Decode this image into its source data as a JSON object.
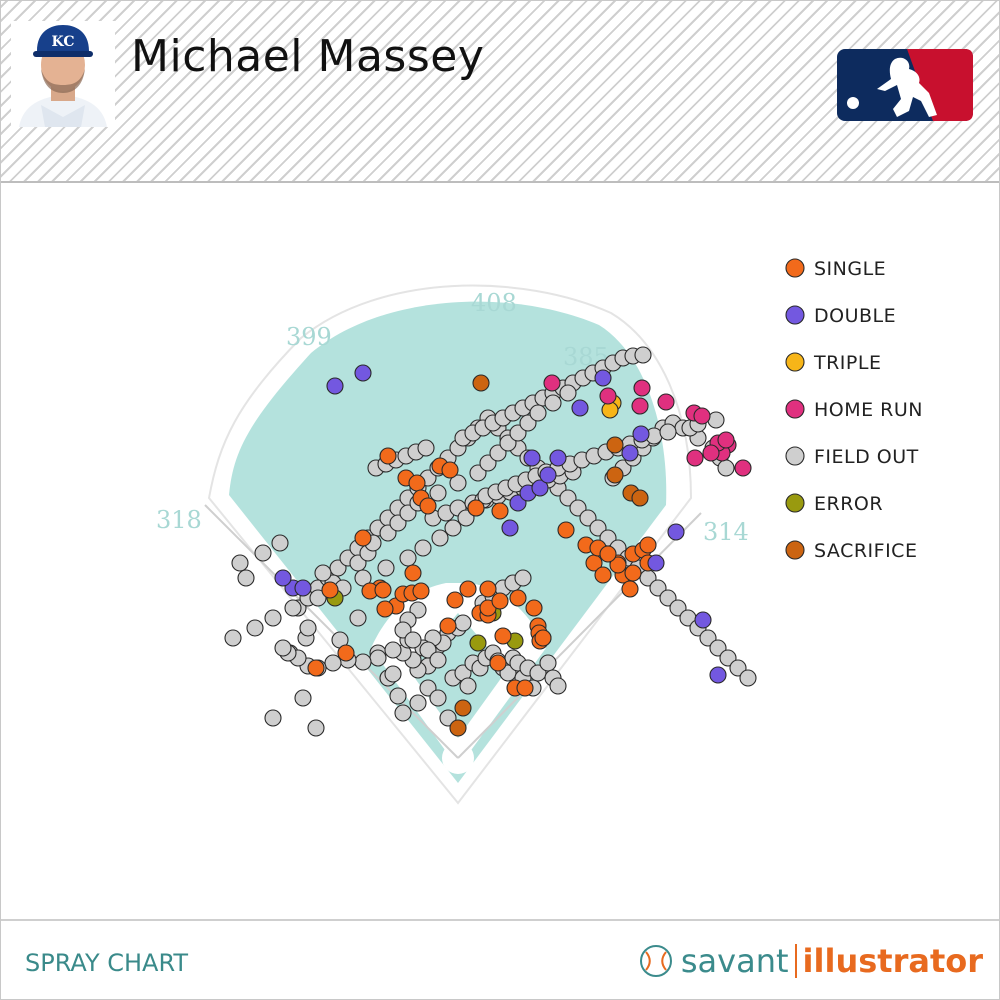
{
  "player": {
    "name": "Michael Massey"
  },
  "footer": {
    "label": "SPRAY CHART",
    "brand_savant": "savant",
    "brand_illustrator": "illustrator"
  },
  "colors": {
    "field": "#b4e2dd",
    "infield": "#ffffff",
    "accent": "#3b8b8c",
    "brand_orange": "#e86a1f"
  },
  "icons": {
    "mlb": "mlb-logo",
    "brand": "baseball-icon"
  },
  "chart_data": {
    "type": "scatter",
    "title": "",
    "distance_labels": [
      "318",
      "399",
      "408",
      "385",
      "314"
    ],
    "legend": [
      {
        "key": "single",
        "label": "SINGLE",
        "color": "#f26a1b"
      },
      {
        "key": "double",
        "label": "DOUBLE",
        "color": "#7358e0"
      },
      {
        "key": "triple",
        "label": "TRIPLE",
        "color": "#f7b518"
      },
      {
        "key": "home_run",
        "label": "HOME RUN",
        "color": "#e0307f"
      },
      {
        "key": "field_out",
        "label": "FIELD OUT",
        "color": "#cfcfcf"
      },
      {
        "key": "error",
        "label": "ERROR",
        "color": "#999a0f"
      },
      {
        "key": "sacrifice",
        "label": "SACRIFICE",
        "color": "#cc6411"
      }
    ],
    "series": [
      {
        "name": "SINGLE",
        "x": [
          -70,
          -52,
          -41,
          -18,
          -8,
          18,
          42,
          108,
          128,
          136,
          145,
          160,
          165,
          172,
          160,
          175,
          140,
          150,
          175,
          185,
          190,
          190,
          -37,
          -30,
          -95,
          -78,
          -45,
          -112,
          -142,
          -128,
          -88,
          -75,
          -62,
          -55,
          -46,
          -37,
          -3,
          -10,
          10,
          22,
          30,
          30,
          30,
          45,
          42,
          60,
          76,
          80,
          81,
          82,
          85,
          -73,
          40,
          57,
          67
        ],
        "y": [
          302,
          280,
          275,
          292,
          288,
          250,
          247,
          228,
          213,
          195,
          183,
          195,
          183,
          169,
          193,
          204,
          210,
          204,
          185,
          208,
          213,
          195,
          260,
          252,
          220,
          170,
          185,
          105,
          90,
          168,
          167,
          168,
          152,
          164,
          165,
          167,
          158,
          132,
          169,
          145,
          143,
          150,
          169,
          122,
          157,
          160,
          150,
          132,
          125,
          117,
          120,
          149,
          95,
          70,
          70
        ]
      },
      {
        "name": "DOUBLE",
        "x": [
          -123,
          -95,
          -165,
          -175,
          -155,
          52,
          60,
          70,
          74,
          82,
          90,
          100,
          122,
          145,
          172,
          183,
          198,
          218,
          245,
          260
        ],
        "y": [
          372,
          385,
          170,
          180,
          170,
          230,
          255,
          265,
          300,
          270,
          283,
          300,
          350,
          380,
          305,
          324,
          195,
          226,
          138,
          83
        ]
      },
      {
        "name": "TRIPLE",
        "x": [
          155,
          152
        ],
        "y": [
          355,
          348
        ]
      },
      {
        "name": "HOME RUN",
        "x": [
          94,
          150,
          184,
          182,
          208,
          236,
          244,
          270,
          264,
          260,
          268,
          285,
          237,
          253
        ],
        "y": [
          375,
          362,
          370,
          352,
          356,
          345,
          342,
          313,
          305,
          315,
          318,
          290,
          300,
          305
        ]
      },
      {
        "name": "FIELD OUT",
        "x": [
          -155,
          -185,
          -142,
          -168,
          -152,
          -150,
          -118,
          -100,
          -80,
          -70,
          -60,
          -55,
          -40,
          -30,
          -20,
          -10,
          -5,
          5,
          10,
          15,
          22,
          28,
          35,
          40,
          45,
          50,
          55,
          60,
          65,
          70,
          75,
          80,
          85,
          90,
          95,
          100,
          -30,
          -40,
          -65,
          -45,
          -55,
          -20,
          -10,
          0,
          5,
          -15,
          -25,
          -35,
          -50,
          -65,
          -80,
          -95,
          -110,
          -125,
          -140,
          -150,
          -160,
          -170,
          -175,
          -160,
          -150,
          -140,
          -130,
          -120,
          -110,
          -100,
          -90,
          -80,
          -70,
          -60,
          -50,
          -40,
          -30,
          -20,
          -10,
          0,
          10,
          20,
          30,
          40,
          50,
          60,
          70,
          80,
          90,
          100,
          110,
          120,
          130,
          140,
          150,
          160,
          170,
          180,
          190,
          200,
          210,
          220,
          230,
          240,
          250,
          260,
          270,
          280,
          290,
          -212,
          -218,
          -195,
          -178,
          -40,
          -50,
          -55,
          -45,
          -30,
          -20,
          25,
          35,
          45,
          55,
          65,
          -25,
          -12,
          0,
          15,
          28,
          40,
          52,
          65,
          78,
          90,
          102,
          115,
          -82,
          -72,
          -62,
          -52,
          -42,
          -32,
          5,
          15,
          25,
          35,
          45,
          55,
          65,
          75,
          85,
          95,
          105,
          115,
          125,
          135,
          145,
          155,
          165,
          175,
          185,
          -125,
          -135,
          -100,
          -90,
          -85,
          -70,
          -60,
          -50,
          -40,
          -20,
          0,
          20,
          30,
          40,
          50,
          60,
          70,
          80,
          95,
          110,
          155,
          165,
          175,
          185,
          195,
          205,
          215,
          225,
          240,
          255,
          262,
          268,
          -225,
          -203,
          -185,
          -165,
          -140,
          -115,
          -95,
          -72,
          -50,
          -35,
          -18,
          -5,
          8,
          18,
          25,
          28,
          38,
          48,
          58,
          68,
          78,
          88,
          100,
          112,
          124,
          136,
          148,
          160,
          172,
          184,
          196,
          210,
          232,
          240,
          258
        ],
        "y": [
          60,
          40,
          30,
          105,
          120,
          130,
          118,
          140,
          105,
          80,
          62,
          45,
          55,
          70,
          60,
          40,
          80,
          85,
          72,
          95,
          90,
          100,
          105,
          97,
          90,
          85,
          100,
          95,
          80,
          90,
          70,
          85,
          120,
          95,
          80,
          72,
          92,
          88,
          84,
          98,
          105,
          112,
          125,
          130,
          135,
          115,
          120,
          110,
          118,
          108,
          100,
          96,
          98,
          95,
          90,
          92,
          100,
          105,
          110,
          150,
          160,
          170,
          180,
          190,
          200,
          210,
          220,
          230,
          240,
          250,
          260,
          270,
          280,
          290,
          300,
          310,
          320,
          330,
          340,
          330,
          320,
          310,
          300,
          290,
          280,
          270,
          260,
          250,
          240,
          230,
          220,
          210,
          200,
          190,
          180,
          170,
          160,
          150,
          140,
          130,
          120,
          110,
          100,
          90,
          80,
          180,
          195,
          205,
          215,
          148,
          138,
          128,
          118,
          108,
          98,
          155,
          162,
          170,
          175,
          180,
          240,
          245,
          250,
          255,
          258,
          262,
          266,
          270,
          274,
          278,
          282,
          286,
          290,
          294,
          298,
          302,
          306,
          310,
          320,
          325,
          330,
          335,
          340,
          345,
          350,
          355,
          360,
          365,
          370,
          375,
          380,
          385,
          390,
          395,
          400,
          402,
          403,
          175,
          185,
          195,
          205,
          215,
          225,
          235,
          245,
          255,
          265,
          275,
          285,
          295,
          305,
          315,
          325,
          335,
          345,
          355,
          365,
          280,
          290,
          300,
          310,
          320,
          330,
          335,
          330,
          320,
          310,
          300,
          290,
          120,
          130,
          140,
          150,
          160,
          170,
          180,
          190,
          200,
          210,
          220,
          230,
          240,
          250,
          258,
          262,
          266,
          270,
          274,
          278,
          282,
          286,
          290,
          294,
          298,
          302,
          306,
          310,
          314,
          318,
          322,
          326,
          330,
          334,
          338
        ]
      },
      {
        "name": "ERROR",
        "x": [
          -123,
          20,
          57,
          35
        ],
        "y": [
          160,
          115,
          117,
          145
        ]
      },
      {
        "name": "SACRIFICE",
        "x": [
          23,
          0,
          5,
          157,
          157,
          173,
          182
        ],
        "y": [
          375,
          30,
          50,
          313,
          283,
          265,
          260
        ]
      }
    ],
    "grid": false,
    "legend_position": "right"
  }
}
